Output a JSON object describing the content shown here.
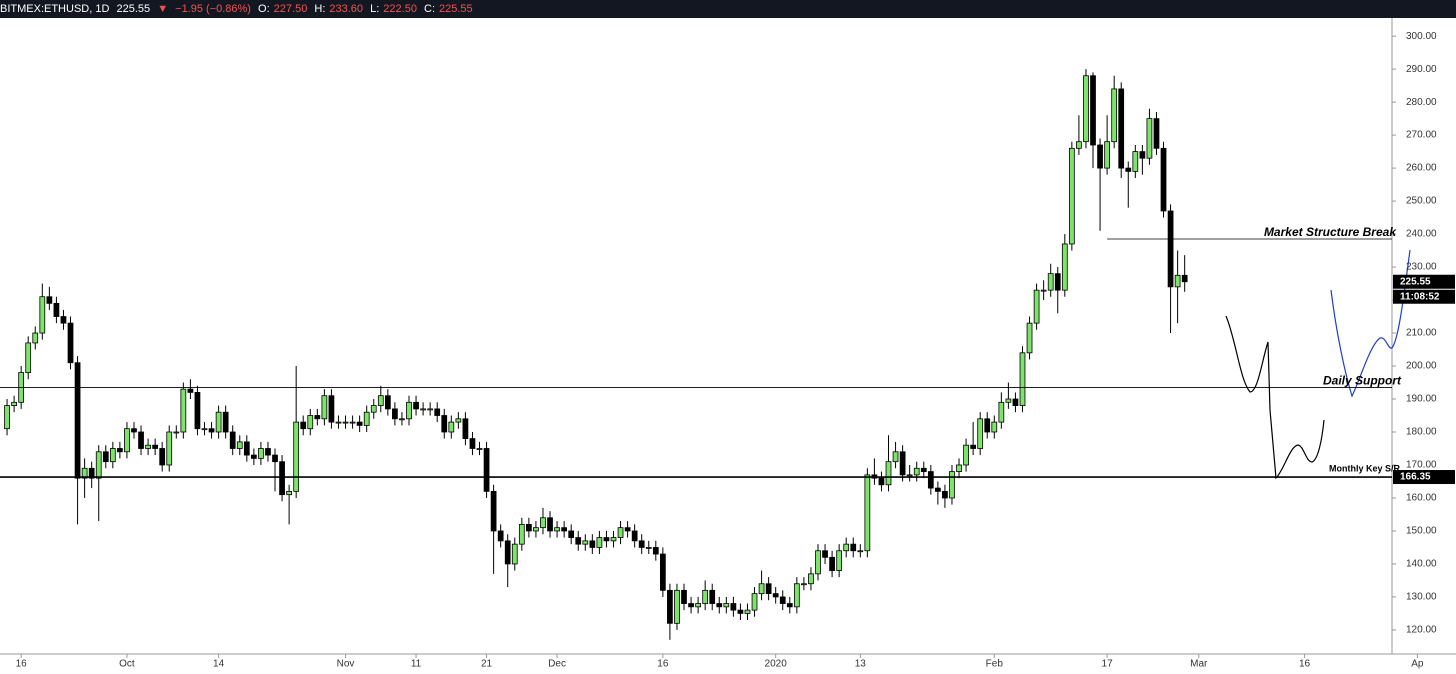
{
  "header": {
    "symbol": "BITMEX:ETHUSD, 1D",
    "last": "225.55",
    "arrow": "▼",
    "change": "−1.95 (−0.86%)",
    "o_label": "O:",
    "o": "227.50",
    "h_label": "H:",
    "h": "233.60",
    "l_label": "L:",
    "l": "222.50",
    "c_label": "C:",
    "c": "225.55"
  },
  "chart_data": {
    "type": "candlestick",
    "up_color": "#7ee36b",
    "down_color": "#000000",
    "x": [
      -2,
      -1,
      0,
      1,
      2,
      3,
      4,
      5,
      6,
      7,
      8,
      9,
      10,
      11,
      12,
      13,
      14,
      15,
      16,
      17,
      18,
      19,
      20,
      21,
      22,
      23,
      24,
      25,
      26,
      27,
      28,
      29,
      30,
      31,
      32,
      33,
      34,
      35,
      36,
      37,
      38,
      39,
      40,
      41,
      42,
      43,
      44,
      45,
      46,
      47,
      48,
      49,
      50,
      51,
      52,
      53,
      54,
      55,
      56,
      57,
      58,
      59,
      60,
      61,
      62,
      63,
      64,
      65,
      66,
      67,
      68,
      69,
      70,
      71,
      72,
      73,
      74,
      75,
      76,
      77,
      78,
      79,
      80,
      81,
      82,
      83,
      84,
      85,
      86,
      87,
      88,
      89,
      90,
      91,
      92,
      93,
      94,
      95,
      96,
      97,
      98,
      99,
      100,
      101,
      102,
      103,
      104,
      105,
      106,
      107,
      108,
      109,
      110,
      111,
      112,
      113,
      114,
      115,
      116,
      117,
      118,
      119,
      120,
      121,
      122,
      123,
      124,
      125,
      126,
      127,
      128,
      129,
      130,
      131,
      132,
      133,
      134,
      135,
      136,
      137,
      138,
      139,
      140,
      141,
      142,
      143,
      144,
      145,
      146,
      147,
      148,
      149,
      150,
      151,
      152,
      153,
      154,
      155,
      156,
      157,
      158,
      159,
      160,
      161,
      162,
      163,
      164,
      165
    ],
    "open": [
      181,
      188,
      189,
      198,
      207,
      210,
      221,
      219,
      215,
      213,
      201,
      166,
      169,
      166,
      174,
      171,
      175,
      174,
      181,
      180,
      175,
      176,
      175,
      170,
      180,
      180,
      193,
      192,
      181,
      181,
      180,
      186,
      180,
      175,
      177,
      173,
      172,
      175,
      173,
      171,
      161,
      162,
      183,
      181,
      185,
      184,
      191,
      183,
      183,
      183,
      183,
      182,
      186,
      188,
      191,
      187,
      184,
      184,
      189,
      187,
      187,
      187,
      185,
      180,
      183,
      184,
      178,
      175,
      175,
      162,
      150,
      147,
      140,
      146,
      152,
      150,
      151,
      154,
      150,
      151,
      150,
      148,
      146,
      147,
      145,
      148,
      147,
      148,
      151,
      150,
      147,
      145,
      145,
      143,
      132,
      122,
      132,
      128,
      127,
      128,
      132,
      128,
      127,
      128,
      126,
      125,
      126,
      131,
      134,
      131,
      130,
      128,
      127,
      134,
      134,
      137,
      144,
      142,
      138,
      144,
      146,
      144,
      144,
      167,
      166,
      164,
      171,
      174,
      167,
      167,
      169,
      168,
      163,
      162,
      160,
      168,
      170,
      176,
      175,
      184,
      180,
      183,
      189,
      190,
      188,
      204,
      213,
      223,
      223,
      228,
      223,
      237,
      266,
      268,
      288,
      267,
      260,
      268,
      284,
      260,
      259,
      265,
      263,
      275,
      266,
      247,
      224,
      227.5
    ],
    "high": [
      190,
      191,
      200,
      209,
      212,
      225,
      224,
      221,
      217,
      215,
      203,
      172,
      171,
      176,
      176,
      177,
      177,
      183,
      183,
      182,
      178,
      178,
      177,
      182,
      182,
      195,
      196,
      194,
      183,
      183,
      188,
      188,
      182,
      179,
      179,
      175,
      177,
      177,
      175,
      173,
      164,
      200,
      185,
      187,
      187,
      193,
      193,
      185,
      185,
      185,
      185,
      188,
      190,
      194,
      193,
      189,
      186,
      191,
      191,
      189,
      189,
      189,
      187,
      185,
      186,
      186,
      180,
      177,
      177,
      164,
      152,
      149,
      148,
      154,
      154,
      153,
      157,
      156,
      153,
      153,
      152,
      150,
      149,
      149,
      150,
      150,
      150,
      153,
      153,
      152,
      149,
      147,
      147,
      145,
      134,
      134,
      134,
      130,
      130,
      135,
      134,
      130,
      130,
      130,
      128,
      128,
      133,
      138,
      136,
      133,
      132,
      130,
      136,
      136,
      139,
      146,
      146,
      144,
      146,
      148,
      148,
      146,
      169,
      172,
      168,
      179,
      177,
      176,
      170,
      171,
      171,
      170,
      165,
      164,
      170,
      172,
      178,
      183,
      186,
      186,
      185,
      192,
      195,
      192,
      206,
      215,
      225,
      226,
      231,
      230,
      240,
      268,
      276,
      290,
      289,
      269,
      276,
      288,
      286,
      262,
      267,
      267,
      278,
      277,
      268,
      249,
      235,
      233.6
    ],
    "low": [
      179,
      186,
      187,
      196,
      205,
      208,
      217,
      213,
      211,
      199,
      152,
      160,
      163,
      153,
      169,
      169,
      172,
      172,
      178,
      173,
      173,
      173,
      168,
      168,
      178,
      178,
      190,
      179,
      179,
      178,
      178,
      178,
      173,
      173,
      171,
      170,
      170,
      171,
      162,
      159,
      152,
      160,
      179,
      179,
      182,
      182,
      181,
      181,
      181,
      181,
      180,
      180,
      184,
      186,
      185,
      182,
      182,
      182,
      185,
      185,
      185,
      183,
      178,
      178,
      181,
      176,
      173,
      173,
      160,
      137,
      145,
      133,
      138,
      144,
      148,
      148,
      149,
      148,
      148,
      148,
      146,
      144,
      144,
      143,
      143,
      145,
      145,
      146,
      148,
      145,
      143,
      143,
      141,
      130,
      117,
      120,
      126,
      125,
      125,
      126,
      126,
      125,
      125,
      124,
      123,
      123,
      124,
      129,
      129,
      128,
      126,
      125,
      125,
      132,
      132,
      135,
      140,
      136,
      136,
      142,
      142,
      142,
      142,
      164,
      162,
      162,
      169,
      165,
      165,
      165,
      166,
      161,
      158,
      157,
      158,
      166,
      168,
      173,
      173,
      178,
      178,
      181,
      187,
      186,
      186,
      202,
      211,
      220,
      221,
      216,
      221,
      235,
      264,
      266,
      260,
      241,
      258,
      266,
      257,
      248,
      257,
      258,
      261,
      264,
      245,
      210,
      213,
      222.5
    ],
    "close": [
      188,
      189,
      198,
      207,
      210,
      221,
      219,
      215,
      213,
      201,
      166,
      169,
      166,
      174,
      171,
      175,
      174,
      181,
      180,
      175,
      176,
      175,
      170,
      180,
      180,
      193,
      192,
      181,
      181,
      180,
      186,
      180,
      175,
      177,
      173,
      172,
      175,
      173,
      171,
      161,
      162,
      183,
      181,
      185,
      184,
      191,
      183,
      183,
      183,
      183,
      182,
      186,
      188,
      191,
      187,
      184,
      184,
      189,
      187,
      187,
      187,
      185,
      180,
      183,
      184,
      178,
      175,
      175,
      162,
      150,
      147,
      140,
      146,
      152,
      150,
      151,
      154,
      150,
      151,
      150,
      148,
      146,
      147,
      145,
      148,
      147,
      148,
      151,
      150,
      147,
      145,
      145,
      143,
      132,
      122,
      132,
      128,
      127,
      128,
      132,
      128,
      127,
      128,
      126,
      125,
      126,
      131,
      134,
      131,
      130,
      128,
      127,
      134,
      134,
      137,
      144,
      142,
      138,
      144,
      146,
      144,
      144,
      167,
      166,
      164,
      171,
      174,
      167,
      167,
      169,
      168,
      163,
      162,
      160,
      168,
      170,
      176,
      175,
      184,
      180,
      183,
      189,
      190,
      188,
      204,
      213,
      223,
      223,
      228,
      223,
      237,
      266,
      268,
      288,
      267,
      260,
      268,
      284,
      260,
      259,
      265,
      263,
      275,
      266,
      247,
      224,
      227.5,
      225.55
    ],
    "xlim": [
      -3,
      194.4
    ],
    "xticks": [
      {
        "value": 0,
        "label": "16"
      },
      {
        "value": 15,
        "label": "Oct"
      },
      {
        "value": 28,
        "label": "14"
      },
      {
        "value": 46,
        "label": "Nov"
      },
      {
        "value": 56,
        "label": "11"
      },
      {
        "value": 66,
        "label": "21"
      },
      {
        "value": 76,
        "label": "Dec"
      },
      {
        "value": 91,
        "label": "16"
      },
      {
        "value": 107,
        "label": "2020"
      },
      {
        "value": 119,
        "label": "13"
      },
      {
        "value": 138,
        "label": "Feb"
      },
      {
        "value": 154,
        "label": "17"
      },
      {
        "value": 167,
        "label": "Mar"
      },
      {
        "value": 182,
        "label": "16"
      },
      {
        "value": 198,
        "label": "Ap"
      }
    ],
    "ylim": [
      112.7,
      305.5
    ],
    "yticks": [
      {
        "value": 120,
        "label": "120.00"
      },
      {
        "value": 130,
        "label": "130.00"
      },
      {
        "value": 140,
        "label": "140.00"
      },
      {
        "value": 150,
        "label": "150.00"
      },
      {
        "value": 160,
        "label": "160.00"
      },
      {
        "value": 170,
        "label": "170.00"
      },
      {
        "value": 180,
        "label": "180.00"
      },
      {
        "value": 190,
        "label": "190.00"
      },
      {
        "value": 200,
        "label": "200.00"
      },
      {
        "value": 210,
        "label": "210.00"
      },
      {
        "value": 220,
        "label": "220.00"
      },
      {
        "value": 230,
        "label": "230.00"
      },
      {
        "value": 240,
        "label": "240.00"
      },
      {
        "value": 250,
        "label": "250.00"
      },
      {
        "value": 260,
        "label": "260.00"
      },
      {
        "value": 270,
        "label": "270.00"
      },
      {
        "value": 280,
        "label": "280.00"
      },
      {
        "value": 290,
        "label": "290.00"
      },
      {
        "value": 300,
        "label": "300.00"
      }
    ],
    "countdown": "11:08:52",
    "levels": [
      {
        "value": 238.5,
        "x_start": 154,
        "label": "Market Structure Break"
      },
      {
        "value": 193.5,
        "label": "Daily Support"
      },
      {
        "value": 166.35,
        "label": "Monthly Key S/R"
      }
    ]
  }
}
